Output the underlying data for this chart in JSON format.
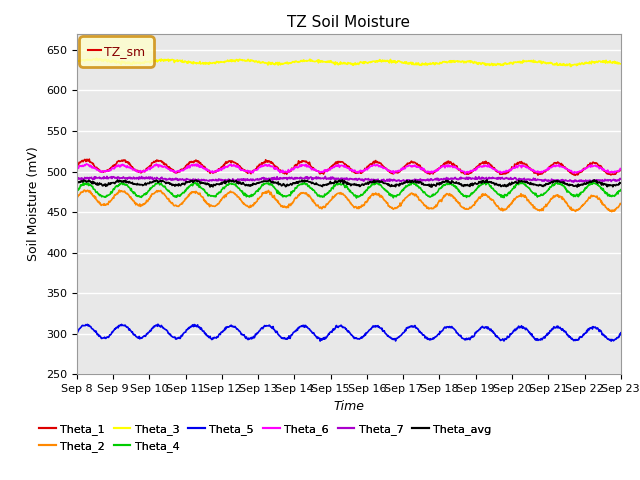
{
  "title": "TZ Soil Moisture",
  "ylabel": "Soil Moisture (mV)",
  "xlabel": "Time",
  "ylim": [
    250,
    670
  ],
  "yticks": [
    250,
    300,
    350,
    400,
    450,
    500,
    550,
    600,
    650
  ],
  "x_labels": [
    "Sep 8",
    "Sep 9",
    "Sep 10",
    "Sep 11",
    "Sep 12",
    "Sep 13",
    "Sep 14",
    "Sep 15",
    "Sep 16",
    "Sep 17",
    "Sep 18",
    "Sep 19",
    "Sep 20",
    "Sep 21",
    "Sep 22",
    "Sep 23"
  ],
  "n_points": 960,
  "series_order": [
    "Theta_1",
    "Theta_2",
    "Theta_3",
    "Theta_4",
    "Theta_5",
    "Theta_6",
    "Theta_7",
    "Theta_avg"
  ],
  "series": {
    "Theta_1": {
      "color": "#dd0000",
      "base": 507,
      "amp": 7,
      "trend": -0.004,
      "freq": 1.0
    },
    "Theta_2": {
      "color": "#ff8800",
      "base": 468,
      "amp": 9,
      "trend": -0.008,
      "freq": 1.0
    },
    "Theta_3": {
      "color": "#ffff00",
      "base": 636,
      "amp": 2,
      "trend": -0.003,
      "freq": 0.5
    },
    "Theta_4": {
      "color": "#00cc00",
      "base": 477,
      "amp": 8,
      "trend": 0.001,
      "freq": 1.0
    },
    "Theta_5": {
      "color": "#0000ee",
      "base": 303,
      "amp": 8,
      "trend": -0.003,
      "freq": 1.0
    },
    "Theta_6": {
      "color": "#ff00ff",
      "base": 504,
      "amp": 4,
      "trend": -0.001,
      "freq": 1.0
    },
    "Theta_7": {
      "color": "#aa00cc",
      "base": 491,
      "amp": 1.5,
      "trend": -0.001,
      "freq": 0.2
    },
    "Theta_avg": {
      "color": "#000000",
      "base": 486,
      "amp": 2.5,
      "trend": -0.001,
      "freq": 1.0
    }
  },
  "legend_label": "TZ_sm",
  "background_color": "#e8e8e8",
  "title_fontsize": 11,
  "axis_fontsize": 9,
  "tick_fontsize": 8,
  "legend_row1": [
    "Theta_1",
    "Theta_2",
    "Theta_3",
    "Theta_4",
    "Theta_5",
    "Theta_6"
  ],
  "legend_row2": [
    "Theta_7",
    "Theta_avg"
  ]
}
